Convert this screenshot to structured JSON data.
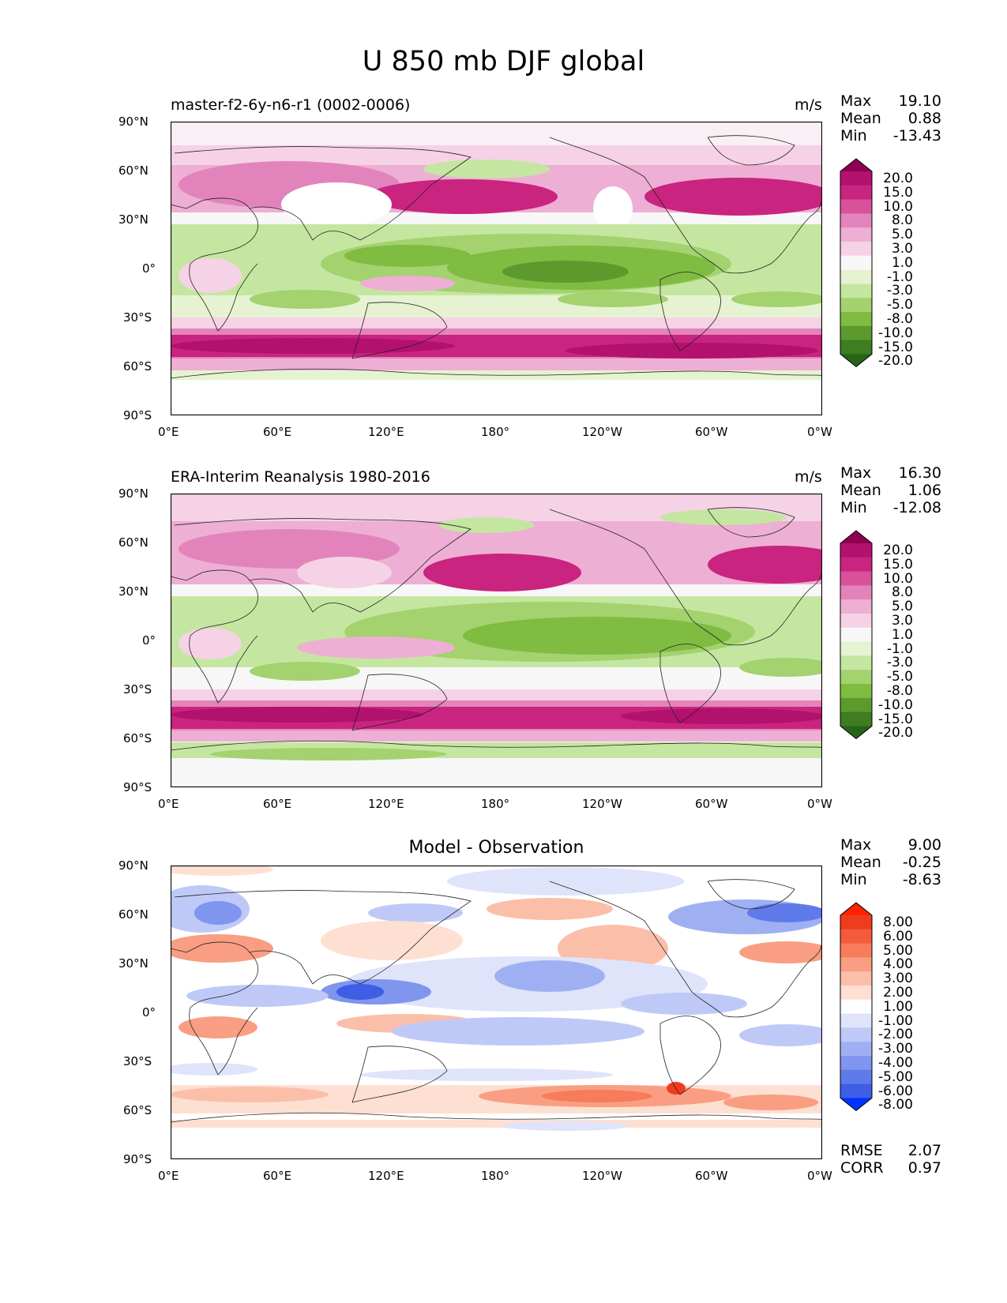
{
  "title": "U 850 mb DJF global",
  "x_ticks": [
    "0°E",
    "60°E",
    "120°E",
    "180°",
    "120°W",
    "60°W",
    "0°W"
  ],
  "y_ticks": [
    "90°N",
    "60°N",
    "30°N",
    "0°",
    "30°S",
    "60°S",
    "90°S"
  ],
  "panels": [
    {
      "title": "master-f2-6y-n6-r1 (0002-0006)",
      "units": "m/s",
      "stats": [
        {
          "label": "Max",
          "value": "19.10"
        },
        {
          "label": "Mean",
          "value": "0.88"
        },
        {
          "label": "Min",
          "value": "-13.43"
        }
      ],
      "colorbar": {
        "levels": [
          "20.0",
          "15.0",
          "10.0",
          "8.0",
          "5.0",
          "3.0",
          "1.0",
          "-1.0",
          "-3.0",
          "-5.0",
          "-8.0",
          "-10.0",
          "-15.0",
          "-20.0"
        ],
        "colors": [
          "#8e0152",
          "#b3116e",
          "#c9247f",
          "#d7529b",
          "#e284bb",
          "#eeafd4",
          "#f6d2e6",
          "#f7f7f7",
          "#e6f3d2",
          "#c5e6a0",
          "#a3d26f",
          "#7fbc41",
          "#5c9a2e",
          "#3f7d21",
          "#276419"
        ]
      }
    },
    {
      "title": "ERA-Interim Reanalysis 1980-2016",
      "units": "m/s",
      "stats": [
        {
          "label": "Max",
          "value": "16.30"
        },
        {
          "label": "Mean",
          "value": "1.06"
        },
        {
          "label": "Min",
          "value": "-12.08"
        }
      ],
      "colorbar": {
        "levels": [
          "20.0",
          "15.0",
          "10.0",
          "8.0",
          "5.0",
          "3.0",
          "1.0",
          "-1.0",
          "-3.0",
          "-5.0",
          "-8.0",
          "-10.0",
          "-15.0",
          "-20.0"
        ],
        "colors": [
          "#8e0152",
          "#b3116e",
          "#c9247f",
          "#d7529b",
          "#e284bb",
          "#eeafd4",
          "#f6d2e6",
          "#f7f7f7",
          "#e6f3d2",
          "#c5e6a0",
          "#a3d26f",
          "#7fbc41",
          "#5c9a2e",
          "#3f7d21",
          "#276419"
        ]
      }
    },
    {
      "title": "Model - Observation",
      "units": "",
      "stats": [
        {
          "label": "Max",
          "value": "9.00"
        },
        {
          "label": "Mean",
          "value": "-0.25"
        },
        {
          "label": "Min",
          "value": "-8.63"
        }
      ],
      "metrics": [
        {
          "label": "RMSE",
          "value": "2.07"
        },
        {
          "label": "CORR",
          "value": "0.97"
        }
      ],
      "colorbar": {
        "levels": [
          "8.00",
          "6.00",
          "5.00",
          "4.00",
          "3.00",
          "2.00",
          "1.00",
          "-1.00",
          "-2.00",
          "-3.00",
          "-4.00",
          "-5.00",
          "-6.00",
          "-8.00"
        ],
        "colors": [
          "#ff2200",
          "#f03c1e",
          "#f35b3a",
          "#f67c5a",
          "#f99e82",
          "#fbbfa9",
          "#fde0d2",
          "#ffffff",
          "#dfe4fb",
          "#bfc9f7",
          "#9fb0f2",
          "#7f95ee",
          "#5f7aea",
          "#3f5ee6",
          "#0033ff"
        ]
      }
    }
  ]
}
